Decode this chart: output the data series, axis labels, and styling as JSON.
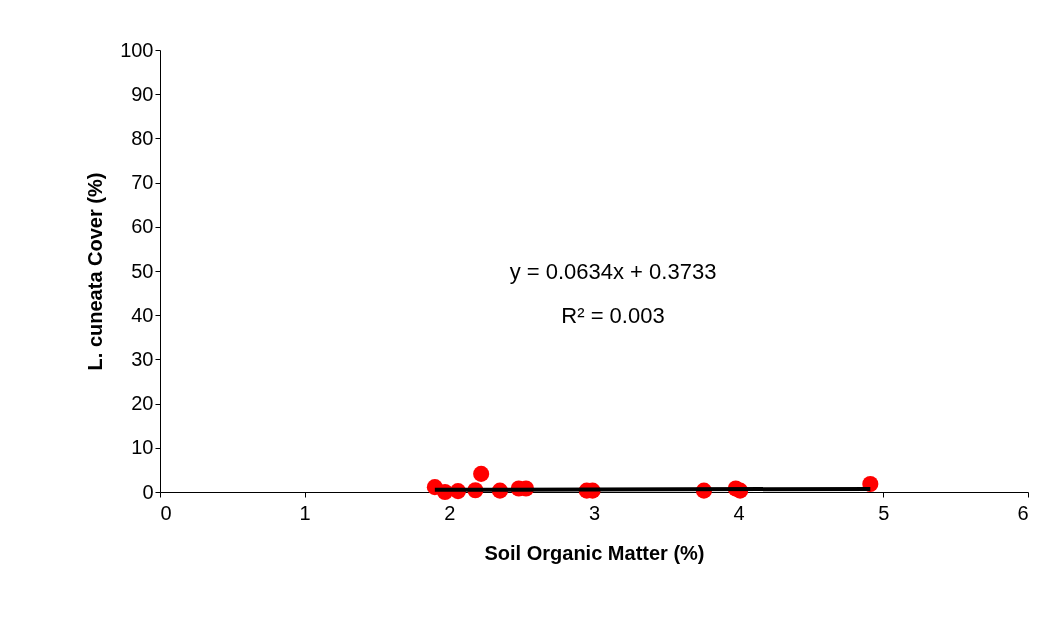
{
  "chart_data": {
    "type": "scatter",
    "xlabel": "Soil Organic Matter (%)",
    "ylabel": "L. cuneata Cover (%)",
    "xlim": [
      0,
      6
    ],
    "xticks": [
      0,
      1,
      2,
      3,
      4,
      5,
      6
    ],
    "ylim": [
      0,
      100
    ],
    "yticks": [
      0,
      10,
      20,
      30,
      40,
      50,
      60,
      70,
      80,
      90,
      100
    ],
    "grid": false,
    "legend": false,
    "series": [
      {
        "color": "#ff0000",
        "marker": "circle",
        "x": [
          1.9,
          1.97,
          2.06,
          2.18,
          2.22,
          2.35,
          2.48,
          2.53,
          2.95,
          2.99,
          3.76,
          3.98,
          4.01,
          4.91
        ],
        "values": [
          1.1,
          0,
          0.2,
          0.4,
          4.1,
          0.3,
          0.8,
          0.8,
          0.3,
          0.3,
          0.3,
          0.8,
          0.3,
          1.8
        ]
      },
      {
        "type": "line",
        "color": "#000000",
        "marker": "none",
        "x": [
          1.9,
          4.91
        ],
        "values": [
          0.5,
          0.7
        ]
      }
    ],
    "annotations": [
      "y = 0.0634x + 0.3733",
      "R² = 0.003"
    ]
  }
}
